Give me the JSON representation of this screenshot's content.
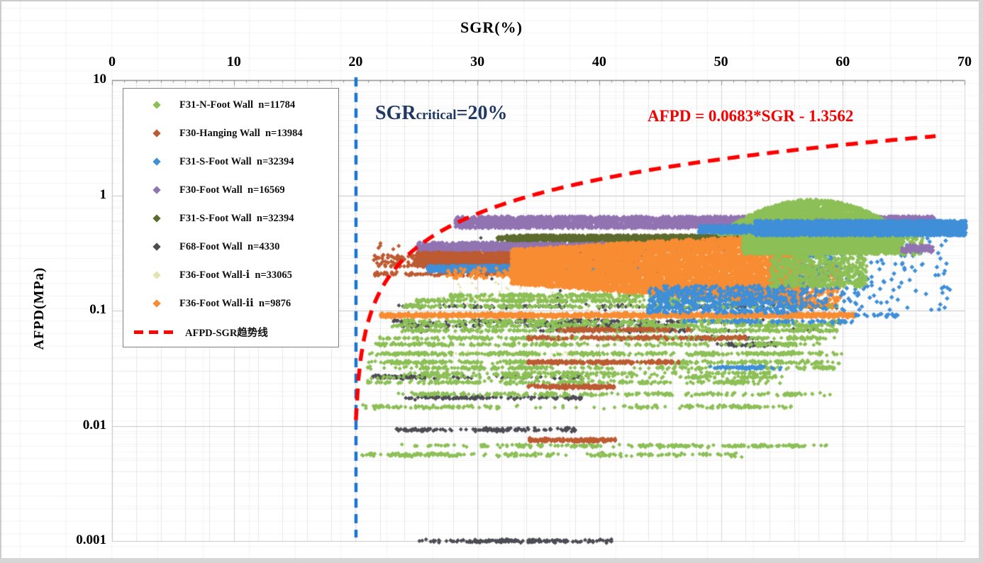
{
  "axes": {
    "x": {
      "title": "SGR(%)",
      "ticks": [
        0,
        10,
        20,
        30,
        40,
        50,
        60,
        70
      ]
    },
    "y": {
      "title": "AFPD(MPa)",
      "ticks": [
        {
          "v": 10,
          "label": "10"
        },
        {
          "v": 1,
          "label": "1"
        },
        {
          "v": 0.1,
          "label": "0.1"
        },
        {
          "v": 0.01,
          "label": "0.01"
        },
        {
          "v": 0.001,
          "label": "0.001"
        }
      ]
    }
  },
  "annotations": {
    "critical": {
      "pre": "SGR",
      "sub": "critical",
      "post": "=20%",
      "color": "#1F3864"
    },
    "equation": {
      "text": "AFPD = 0.0683*SGR - 1.3562",
      "color": "#F50000"
    }
  },
  "legend": {
    "items": [
      {
        "label": "F31-N-Foot Wall  n=11784",
        "color": "#8CBF56",
        "type": "marker"
      },
      {
        "label": "F30-Hanging Wall  n=13984",
        "color": "#BC5A32",
        "type": "marker"
      },
      {
        "label": "F31-S-Foot Wall  n=32394",
        "color": "#3E8ED8",
        "type": "marker"
      },
      {
        "label": "F30-Foot Wall  n=16569",
        "color": "#9173B2",
        "type": "marker"
      },
      {
        "label": "F31-S-Foot Wall  n=32394",
        "color": "#5C6B2D",
        "type": "marker"
      },
      {
        "label": "F68-Foot Wall  n=4330",
        "color": "#4C4C54",
        "type": "marker"
      },
      {
        "label": "F36-Foot Wall-ⅰ  n=33065",
        "color": "#E4E4B0",
        "type": "marker"
      },
      {
        "label": "F36-Foot Wall-ⅱ  n=9876",
        "color": "#F78C32",
        "type": "marker"
      },
      {
        "label": "AFPD-SGR趋势线",
        "color": "#FF0000",
        "type": "dash"
      }
    ]
  },
  "chart_data": {
    "type": "scatter",
    "x_axis": {
      "label": "SGR(%)",
      "range": [
        0,
        70
      ],
      "ticks": [
        0,
        10,
        20,
        30,
        40,
        50,
        60,
        70
      ],
      "position": "top",
      "minor_grid_step": 2
    },
    "y_axis": {
      "label": "AFPD(MPa)",
      "scale": "log",
      "range": [
        0.001,
        10
      ],
      "ticks": [
        10,
        1,
        0.1,
        0.01,
        0.001
      ]
    },
    "grid": {
      "vertical_minor": true,
      "horizontal_log_minor": true
    },
    "critical_line": {
      "x": 20,
      "color": "#1B74D0",
      "style": "dashed",
      "label": "SGRcritical=20%"
    },
    "trend": {
      "name": "AFPD-SGR趋势线",
      "equation": "AFPD = 0.0683*SGR - 1.3562",
      "slope": 0.0683,
      "intercept": -1.3562,
      "x_range": [
        20.02,
        67.8
      ],
      "color": "#FE0000",
      "style": "dashed"
    },
    "series": [
      {
        "name": "F31-N-Foot Wall",
        "count": 11784,
        "color": "#8CBF56",
        "marker": "diamond",
        "bands": [
          {
            "t": "rows",
            "z": 2,
            "s": 3.0,
            "list": [
              [
                0.135,
                27.8,
                56,
                420
              ],
              [
                0.122,
                25.0,
                57,
                420
              ],
              [
                0.109,
                24.0,
                59.5,
                300
              ],
              [
                0.0806,
                24.0,
                59.5,
                260
              ],
              [
                0.0742,
                23.0,
                60.0,
                340
              ],
              [
                0.0673,
                23.5,
                59.5,
                300
              ],
              [
                0.0576,
                22.0,
                59.7,
                380
              ],
              [
                0.0509,
                21.5,
                59.0,
                300
              ],
              [
                0.0423,
                20.9,
                59.9,
                420
              ],
              [
                0.0356,
                20.9,
                59.8,
                380
              ],
              [
                0.0318,
                21.0,
                59.5,
                260
              ],
              [
                0.0285,
                24.0,
                55.0,
                220
              ],
              [
                0.0265,
                21.0,
                55.0,
                170
              ],
              [
                0.0239,
                21.0,
                55.2,
                260
              ],
              [
                0.0188,
                23.5,
                59.2,
                240
              ],
              [
                0.0146,
                20.6,
                55.8,
                200
              ],
              [
                0.0067,
                23.8,
                58.7,
                230
              ],
              [
                0.0056,
                20.4,
                51.7,
                210
              ]
            ]
          },
          {
            "t": "hump",
            "z": 10,
            "x": [
              49.8,
              63.6
            ],
            "base": 0.46,
            "peak": 0.92,
            "xp": 57.5,
            "n": 2600,
            "s": 3.4
          },
          {
            "t": "box",
            "z": 10,
            "x": [
              51.8,
              64.9
            ],
            "v": [
              0.31,
              0.45
            ],
            "n": 2100,
            "s": 3.4
          },
          {
            "t": "box",
            "z": 10,
            "x": [
              54.0,
              62.0
            ],
            "v": [
              0.16,
              0.3
            ],
            "n": 600,
            "s": 3.2
          },
          {
            "t": "box",
            "z": 10,
            "x": [
              64.9,
              66.6
            ],
            "v": [
              0.3,
              0.44
            ],
            "n": 55,
            "s": 3.2
          }
        ]
      },
      {
        "name": "F30-Hanging Wall",
        "count": 13984,
        "color": "#BC5A32",
        "marker": "diamond",
        "bands": [
          {
            "t": "box",
            "z": 3,
            "x": [
              25.0,
              43.0
            ],
            "v": [
              0.238,
              0.33
            ],
            "n": 2600,
            "s": 3.2
          },
          {
            "t": "box",
            "z": 3,
            "x": [
              21.5,
              25.3
            ],
            "v": [
              0.24,
              0.305
            ],
            "n": 70,
            "s": 3.2
          },
          {
            "t": "box",
            "z": 3,
            "x": [
              21.8,
              23.6
            ],
            "v": [
              0.335,
              0.385
            ],
            "n": 5,
            "s": 3.1
          },
          {
            "t": "row",
            "z": 3,
            "v": 0.208,
            "x": [
              21.6,
              47.0
            ],
            "n": 290,
            "s": 3.1
          },
          {
            "t": "rows",
            "z": 3,
            "s": 3.1,
            "list": [
              [
                0.068,
                36.5,
                47.5,
                150
              ],
              [
                0.058,
                34.2,
                52.0,
                170
              ],
              [
                0.0356,
                34.2,
                46.5,
                240
              ],
              [
                0.0218,
                34.2,
                41.2,
                190
              ],
              [
                0.0075,
                34.3,
                41.3,
                190
              ]
            ]
          }
        ]
      },
      {
        "name": "F31-S-Foot Wall",
        "count": 32394,
        "color": "#3E8ED8",
        "marker": "diamond",
        "bands": [
          {
            "t": "box",
            "z": 4,
            "x": [
              25.9,
              44.5
            ],
            "v": [
              0.218,
              0.246
            ],
            "n": 1300,
            "s": 3.2,
            "e": 0.9
          },
          {
            "t": "box",
            "z": 9,
            "x": [
              56.5,
              68.8
            ],
            "v": [
              0.1,
              0.43
            ],
            "n": 270,
            "s": 3.4,
            "e": 1.6
          },
          {
            "t": "box",
            "z": 9,
            "x": [
              44.0,
              56.2
            ],
            "v": [
              0.095,
              0.165
            ],
            "n": 620,
            "s": 3.2
          },
          {
            "t": "row",
            "z": 9,
            "v": 0.0806,
            "x": [
              47.0,
              61.5
            ],
            "n": 90,
            "s": 3.0
          },
          {
            "t": "row",
            "z": 9,
            "v": 0.032,
            "x": [
              49.0,
              55.0
            ],
            "n": 65,
            "s": 3.0
          },
          {
            "t": "box",
            "z": 9,
            "x": [
              61.0,
              64.6
            ],
            "v": [
              0.088,
              0.094
            ],
            "n": 22,
            "s": 3.2
          },
          {
            "t": "box",
            "z": 11,
            "x": [
              52.8,
              70.1
            ],
            "v": [
              0.45,
              0.6
            ],
            "n": 2800,
            "s": 3.5,
            "e": 0.95
          },
          {
            "t": "box",
            "z": 11,
            "x": [
              48.2,
              53.0
            ],
            "v": [
              0.47,
              0.55
            ],
            "n": 240,
            "s": 3.4
          }
        ]
      },
      {
        "name": "F30-Foot Wall",
        "count": 16569,
        "color": "#9173B2",
        "marker": "diamond",
        "bands": [
          {
            "t": "box",
            "z": 5,
            "x": [
              25.0,
              50.6
            ],
            "v": [
              0.335,
              0.39
            ],
            "n": 1700,
            "s": 3.2,
            "e": 0.92
          },
          {
            "t": "box",
            "z": 6,
            "x": [
              28.2,
              67.5
            ],
            "v": [
              0.52,
              0.655
            ],
            "n": 2900,
            "s": 3.4,
            "e": 0.9
          },
          {
            "t": "box",
            "z": 12,
            "x": [
              64.8,
              67.4
            ],
            "v": [
              0.32,
              0.37
            ],
            "n": 100,
            "s": 3.2
          }
        ]
      },
      {
        "name": "F31-S-Foot Wall",
        "count": 32394,
        "color": "#5C6B2D",
        "marker": "diamond",
        "bands": [
          {
            "t": "box",
            "z": 7,
            "x": [
              32.4,
              55.8
            ],
            "v": [
              0.405,
              0.45
            ],
            "n": 1500,
            "s": 3.2,
            "e": 0.93
          },
          {
            "t": "box",
            "z": 7,
            "x": [
              31.6,
              32.6
            ],
            "v": [
              0.41,
              0.44
            ],
            "n": 25,
            "s": 3.0
          }
        ]
      },
      {
        "name": "F68-Foot Wall",
        "count": 4330,
        "color": "#4C4C54",
        "marker": "diamond",
        "bands": [
          {
            "t": "rows",
            "z": 1,
            "s": 3.0,
            "list": [
              [
                0.109,
                23.4,
                59.5,
                200
              ],
              [
                0.0806,
                23.0,
                60.0,
                190
              ],
              [
                0.0742,
                23.8,
                47.0,
                150
              ],
              [
                0.0673,
                25.0,
                60.0,
                110
              ],
              [
                0.0576,
                47.0,
                53.0,
                60
              ],
              [
                0.0509,
                49.7,
                54.5,
                70
              ],
              [
                0.0265,
                21.4,
                38.5,
                150
              ],
              [
                0.0175,
                23.7,
                38.5,
                130
              ],
              [
                0.00925,
                23.3,
                38.3,
                140
              ],
              [
                0.001,
                24.6,
                41.0,
                160
              ]
            ]
          },
          {
            "t": "box",
            "z": 1,
            "x": [
              30.0,
              56.0
            ],
            "v": [
              0.1,
              0.45
            ],
            "n": 130,
            "s": 2.8
          }
        ]
      },
      {
        "name": "F36-Foot Wall-ⅰ",
        "count": 33065,
        "color": "#E4E4B0",
        "marker": "diamond",
        "bands": [
          {
            "t": "rows",
            "z": 0,
            "s": 2.2,
            "list": [
              [
                0.13,
                27.0,
                42.0,
                60
              ],
              [
                0.09,
                25.0,
                45.0,
                70
              ],
              [
                0.0423,
                26.0,
                40.0,
                50
              ]
            ]
          },
          {
            "t": "box",
            "z": 0,
            "x": [
              28.0,
              48.0
            ],
            "v": [
              0.1,
              0.25
            ],
            "n": 80,
            "s": 2.2
          }
        ]
      },
      {
        "name": "F36-Foot Wall-ⅱ",
        "count": 9876,
        "color": "#F78C32",
        "marker": "diamond",
        "bands": [
          {
            "t": "wedge",
            "z": 8,
            "x": [
              32.8,
              56.5
            ],
            "top": [
              0.34,
              0.47
            ],
            "bot": [
              0.17,
              0.112
            ],
            "n": 6500,
            "s": 3.4
          },
          {
            "t": "box",
            "z": 8,
            "x": [
              27.5,
              33.0
            ],
            "v": [
              0.19,
              0.235
            ],
            "n": 60,
            "s": 3.2
          },
          {
            "t": "row",
            "z": 8,
            "v": 0.091,
            "x": [
              22.1,
              60.9
            ],
            "n": 1500,
            "s": 3.3,
            "jy": 2.6
          },
          {
            "t": "box",
            "z": 8,
            "x": [
              56.4,
              59.8
            ],
            "v": [
              0.105,
              0.25
            ],
            "n": 260,
            "s": 3.2,
            "e": 1.2
          }
        ]
      }
    ]
  }
}
